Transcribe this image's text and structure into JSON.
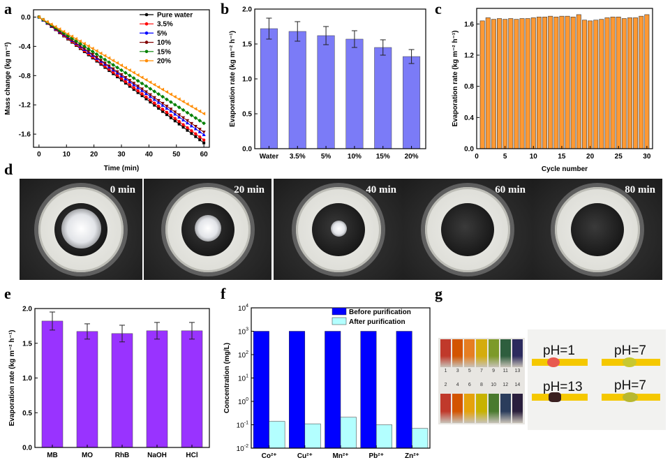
{
  "panels": {
    "a": "a",
    "b": "b",
    "c": "c",
    "d": "d",
    "e": "e",
    "f": "f",
    "g": "g"
  },
  "chart_data": [
    {
      "id": "a",
      "type": "line",
      "xlabel": "Time (min)",
      "ylabel": "Mass change (kg m⁻²)",
      "xlim": [
        -2,
        62
      ],
      "ylim": [
        -1.78,
        0.1
      ],
      "xticks": [
        0,
        10,
        20,
        30,
        40,
        50,
        60
      ],
      "yticks": [
        0.0,
        -0.4,
        -0.8,
        -1.2,
        -1.6
      ],
      "ytick_labels": [
        "0.0",
        "-0.4",
        "-0.8",
        "-1.2",
        "-1.6"
      ],
      "legend": "top-right",
      "series": [
        {
          "name": "Pure water",
          "color": "#000000",
          "marker": "square",
          "slope": -0.02867
        },
        {
          "name": "3.5%",
          "color": "#ff0000",
          "marker": "circle",
          "slope": -0.028
        },
        {
          "name": "5%",
          "color": "#0000ff",
          "marker": "triangle-up",
          "slope": -0.0268
        },
        {
          "name": "10%",
          "color": "#800000",
          "marker": "triangle-down",
          "slope": -0.0262
        },
        {
          "name": "15%",
          "color": "#008000",
          "marker": "diamond",
          "slope": -0.0242
        },
        {
          "name": "20%",
          "color": "#ff8c00",
          "marker": "triangle-left",
          "slope": -0.022
        }
      ]
    },
    {
      "id": "b",
      "type": "bar",
      "categories": [
        "Water",
        "3.5%",
        "5%",
        "10%",
        "15%",
        "20%"
      ],
      "values": [
        1.72,
        1.68,
        1.62,
        1.57,
        1.45,
        1.32
      ],
      "errors": [
        0.15,
        0.14,
        0.13,
        0.12,
        0.11,
        0.1
      ],
      "ylabel": "Evaporation rate (kg m⁻² h⁻¹)",
      "ylim": [
        0,
        2.0
      ],
      "yticks": [
        "0.0",
        "0.5",
        "1.0",
        "1.5",
        "2.0"
      ],
      "color": "#7b7bf7"
    },
    {
      "id": "c",
      "type": "bar",
      "x": [
        1,
        2,
        3,
        4,
        5,
        6,
        7,
        8,
        9,
        10,
        11,
        12,
        13,
        14,
        15,
        16,
        17,
        18,
        19,
        20,
        21,
        22,
        23,
        24,
        25,
        26,
        27,
        28,
        29,
        30
      ],
      "values": [
        1.64,
        1.68,
        1.66,
        1.67,
        1.66,
        1.67,
        1.66,
        1.67,
        1.67,
        1.68,
        1.69,
        1.69,
        1.7,
        1.69,
        1.7,
        1.7,
        1.69,
        1.72,
        1.65,
        1.64,
        1.65,
        1.66,
        1.68,
        1.69,
        1.69,
        1.67,
        1.68,
        1.68,
        1.7,
        1.72
      ],
      "xlabel": "Cycle number",
      "ylabel": "Evaporation rate (kg m⁻² h⁻¹)",
      "ylim": [
        0,
        1.8
      ],
      "xlim": [
        0,
        31
      ],
      "yticks": [
        "0.0",
        "0.4",
        "0.8",
        "1.2",
        "1.6"
      ],
      "xticks": [
        0,
        5,
        10,
        15,
        20,
        25,
        30
      ],
      "color": "#ff9933"
    },
    {
      "id": "e",
      "type": "bar",
      "categories": [
        "MB",
        "MO",
        "RhB",
        "NaOH",
        "HCl"
      ],
      "values": [
        1.82,
        1.67,
        1.64,
        1.68,
        1.68
      ],
      "errors": [
        0.13,
        0.11,
        0.12,
        0.12,
        0.12
      ],
      "ylabel": "Evaporation rate (kg m⁻² h⁻¹)",
      "ylim": [
        0,
        2.0
      ],
      "yticks": [
        "0.0",
        "0.5",
        "1.0",
        "1.5",
        "2.0"
      ],
      "color": "#9933ff"
    },
    {
      "id": "f",
      "type": "bar",
      "log_scale": true,
      "categories": [
        "Co²⁺",
        "Cu²⁺",
        "Mn²⁺",
        "Pb²⁺",
        "Zn²⁺"
      ],
      "ylabel": "Concentration (mg/L)",
      "ylim": [
        0.01,
        10000
      ],
      "yticks": [
        {
          "base": "10",
          "exp": "-2"
        },
        {
          "base": "10",
          "exp": "-1"
        },
        {
          "base": "10",
          "exp": "0"
        },
        {
          "base": "10",
          "exp": "1"
        },
        {
          "base": "10",
          "exp": "2"
        },
        {
          "base": "10",
          "exp": "3"
        },
        {
          "base": "10",
          "exp": "4"
        }
      ],
      "legend": "top-right",
      "series": [
        {
          "name": "Before purification",
          "values": [
            1000,
            1000,
            1000,
            1000,
            1000
          ],
          "color": "#0000ff"
        },
        {
          "name": "After purification",
          "values": [
            0.14,
            0.11,
            0.21,
            0.1,
            0.07
          ],
          "color": "#b3ffff"
        }
      ]
    }
  ],
  "photos_d": [
    {
      "time": "0 min",
      "salt": 0.75
    },
    {
      "time": "20 min",
      "salt": 0.5
    },
    {
      "time": "40 min",
      "salt": 0.3
    },
    {
      "time": "60 min",
      "salt": 0
    },
    {
      "time": "80 min",
      "salt": 0
    }
  ],
  "strip": {
    "top_numbers": [
      "1",
      "3",
      "5",
      "7",
      "9",
      "11",
      "13"
    ],
    "bottom_numbers": [
      "2",
      "4",
      "6",
      "8",
      "10",
      "12",
      "14"
    ]
  },
  "ph": [
    {
      "label": "pH=1"
    },
    {
      "label": "pH=7"
    },
    {
      "label": "pH=13"
    },
    {
      "label": "pH=7"
    }
  ]
}
